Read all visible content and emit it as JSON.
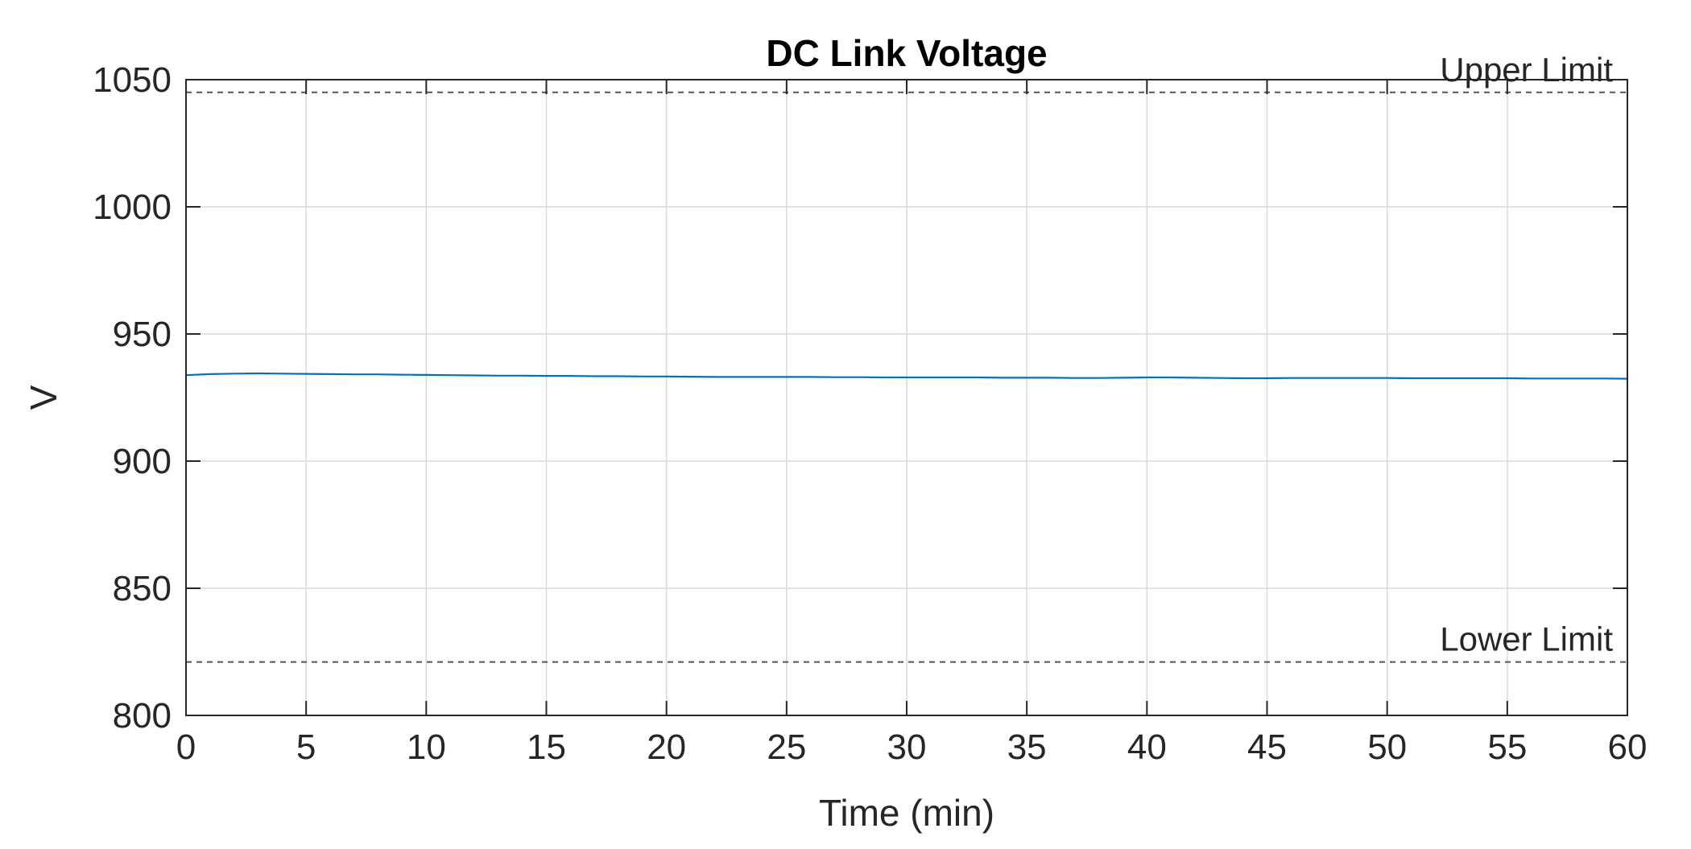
{
  "chart_data": {
    "type": "line",
    "title": "DC Link Voltage",
    "xlabel": "Time (min)",
    "ylabel": "V",
    "xlim": [
      0,
      60
    ],
    "ylim": [
      800,
      1050
    ],
    "xticks": [
      "0",
      "5",
      "10",
      "15",
      "20",
      "25",
      "30",
      "35",
      "40",
      "45",
      "50",
      "55",
      "60"
    ],
    "yticks": [
      "800",
      "850",
      "900",
      "950",
      "1000",
      "1050"
    ],
    "grid": true,
    "series": [
      {
        "x": [
          0,
          1,
          2,
          3,
          4,
          5,
          6,
          7,
          8,
          9,
          10,
          11,
          12,
          13,
          14,
          15,
          16,
          17,
          18,
          19,
          20,
          21,
          22,
          23,
          24,
          25,
          26,
          27,
          28,
          29,
          30,
          31,
          32,
          33,
          34,
          35,
          36,
          37,
          38,
          39,
          40,
          41,
          42,
          43,
          44,
          45,
          46,
          47,
          48,
          49,
          50,
          51,
          52,
          53,
          54,
          55,
          56,
          57,
          58,
          59,
          60
        ],
        "y": [
          933.8,
          934.2,
          934.4,
          934.5,
          934.4,
          934.3,
          934.2,
          934.1,
          934.1,
          934.0,
          933.9,
          933.8,
          933.7,
          933.6,
          933.6,
          933.5,
          933.5,
          933.4,
          933.4,
          933.3,
          933.3,
          933.2,
          933.1,
          933.1,
          933.1,
          933.1,
          933.1,
          933.0,
          933.0,
          932.9,
          932.9,
          932.9,
          932.9,
          932.9,
          932.8,
          932.8,
          932.8,
          932.7,
          932.7,
          932.8,
          932.9,
          932.9,
          932.8,
          932.7,
          932.6,
          932.6,
          932.7,
          932.7,
          932.7,
          932.7,
          932.7,
          932.6,
          932.6,
          932.6,
          932.6,
          932.6,
          932.5,
          932.5,
          932.5,
          932.5,
          932.4
        ],
        "color": "#0072bd"
      }
    ],
    "reference_lines": [
      {
        "label": "Upper Limit",
        "y": 1045,
        "style": "dashed",
        "color": "#555555"
      },
      {
        "label": "Lower Limit",
        "y": 821,
        "style": "dashed",
        "color": "#555555"
      }
    ]
  }
}
